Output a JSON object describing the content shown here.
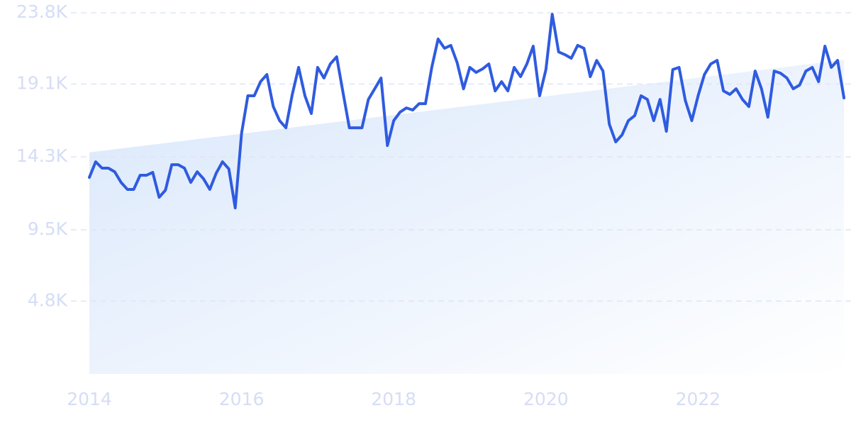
{
  "chart_data": {
    "type": "line",
    "x": [
      2014,
      2014.083,
      2014.167,
      2014.25,
      2014.333,
      2014.417,
      2014.5,
      2014.583,
      2014.667,
      2014.75,
      2014.833,
      2014.917,
      2015,
      2015.083,
      2015.167,
      2015.25,
      2015.333,
      2015.417,
      2015.5,
      2015.583,
      2015.667,
      2015.75,
      2015.833,
      2015.917,
      2016,
      2016.083,
      2016.167,
      2016.25,
      2016.333,
      2016.417,
      2016.5,
      2016.583,
      2016.667,
      2016.75,
      2016.833,
      2016.917,
      2017,
      2017.083,
      2017.167,
      2017.25,
      2017.333,
      2017.417,
      2017.5,
      2017.583,
      2017.667,
      2017.75,
      2017.833,
      2017.917,
      2018,
      2018.083,
      2018.167,
      2018.25,
      2018.333,
      2018.417,
      2018.5,
      2018.583,
      2018.667,
      2018.75,
      2018.833,
      2018.917,
      2019,
      2019.083,
      2019.167,
      2019.25,
      2019.333,
      2019.417,
      2019.5,
      2019.583,
      2019.667,
      2019.75,
      2019.833,
      2019.917,
      2020,
      2020.083,
      2020.167,
      2020.25,
      2020.333,
      2020.417,
      2020.5,
      2020.583,
      2020.667,
      2020.75,
      2020.833,
      2020.917,
      2021,
      2021.083,
      2021.167,
      2021.25,
      2021.333,
      2021.417,
      2021.5,
      2021.583,
      2021.667,
      2021.75,
      2021.833,
      2021.917,
      2022,
      2022.083,
      2022.167,
      2022.25,
      2022.333,
      2022.417,
      2022.5,
      2022.583,
      2022.667,
      2022.75,
      2022.833,
      2022.917,
      2023,
      2023.083,
      2023.167,
      2023.25,
      2023.333,
      2023.417,
      2023.5,
      2023.583,
      2023.667,
      2023.75,
      2023.833,
      2023.917
    ],
    "values": [
      12.95,
      13.98,
      13.56,
      13.56,
      13.32,
      12.62,
      12.16,
      12.16,
      13.09,
      13.09,
      13.28,
      11.64,
      12.11,
      13.79,
      13.79,
      13.56,
      12.62,
      13.32,
      12.86,
      12.16,
      13.23,
      13.98,
      13.51,
      10.94,
      15.85,
      18.33,
      18.33,
      19.26,
      19.73,
      17.62,
      16.69,
      16.22,
      18.42,
      20.2,
      18.33,
      17.16,
      20.2,
      19.5,
      20.43,
      20.9,
      18.56,
      16.22,
      16.22,
      16.22,
      18.09,
      18.79,
      19.5,
      15.05,
      16.69,
      17.25,
      17.53,
      17.39,
      17.81,
      17.81,
      20.2,
      22.07,
      21.46,
      21.65,
      20.52,
      18.79,
      20.2,
      19.87,
      20.1,
      20.43,
      18.65,
      19.26,
      18.65,
      20.2,
      19.59,
      20.43,
      21.6,
      18.33,
      20.06,
      23.7,
      21.22,
      21.04,
      20.8,
      21.65,
      21.46,
      19.59,
      20.66,
      19.96,
      16.46,
      15.29,
      15.75,
      16.69,
      17.02,
      18.33,
      18.09,
      16.69,
      18.09,
      15.99,
      20.06,
      20.2,
      18.0,
      16.69,
      18.33,
      19.73,
      20.43,
      20.66,
      18.65,
      18.42,
      18.79,
      18.09,
      17.62,
      19.96,
      18.79,
      16.92,
      19.96,
      19.82,
      19.5,
      18.79,
      19.03,
      19.96,
      20.2,
      19.26,
      21.6,
      20.2,
      20.66,
      18.19
    ],
    "color": "#2f5be0",
    "trend": {
      "x": [
        2014,
        2023.917
      ],
      "values": [
        14.6,
        20.7
      ]
    },
    "xlim": [
      2014,
      2024
    ],
    "ylim": [
      0,
      23.8
    ],
    "xticks": [
      2014,
      2016,
      2018,
      2020,
      2022
    ],
    "yticks": [
      {
        "value": 4.8,
        "label": "4.8K"
      },
      {
        "value": 9.5,
        "label": "9.5K"
      },
      {
        "value": 14.3,
        "label": "14.3K"
      },
      {
        "value": 19.1,
        "label": "19.1K"
      },
      {
        "value": 23.8,
        "label": "23.8K"
      }
    ],
    "grid": true
  }
}
